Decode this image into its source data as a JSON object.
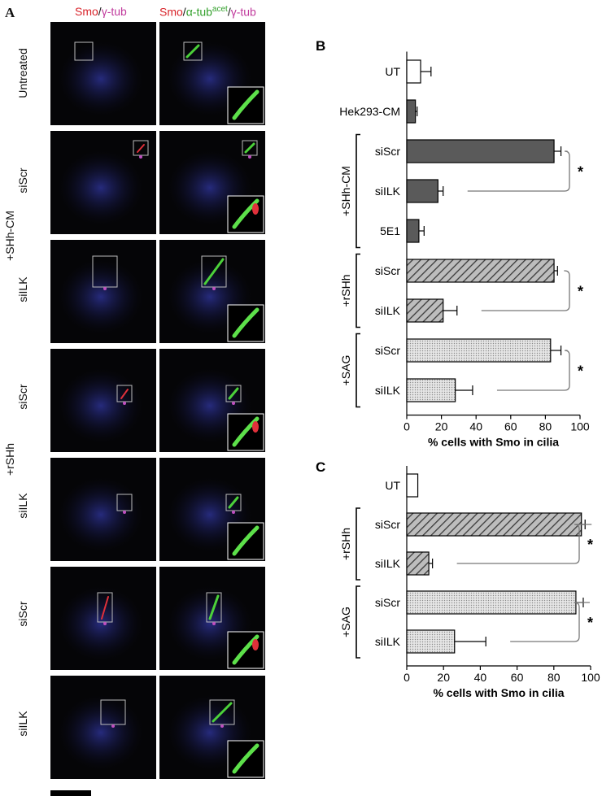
{
  "panel_A": {
    "letter": "A",
    "column1_header": {
      "smo": "Smo",
      "sep": "/",
      "gamma": "γ-tub"
    },
    "column2_header": {
      "smo": "Smo",
      "sep1": "/",
      "alpha": "α-tub",
      "acet": "acet",
      "sep2": "/",
      "gamma": "γ-tub"
    },
    "rows": [
      {
        "label": "Untreated"
      },
      {
        "label": "siScr"
      },
      {
        "label": "siILK"
      },
      {
        "label": "siScr"
      },
      {
        "label": "siILK"
      },
      {
        "label": "siScr"
      },
      {
        "label": "siILK"
      }
    ],
    "group_labels": {
      "shh_cm": "+SHh-CM",
      "rshh": "+rSHh"
    }
  },
  "chart_data": [
    {
      "panel": "B",
      "type": "bar",
      "orientation": "horizontal",
      "categories": [
        "UT",
        "Hek293-CM",
        "siScr",
        "siILK",
        "5E1",
        "siScr",
        "siILK",
        "siScr",
        "siILK"
      ],
      "values": [
        8,
        5,
        85,
        18,
        7,
        85,
        21,
        83,
        28
      ],
      "errors": [
        6,
        1,
        4,
        3,
        3,
        2,
        8,
        6,
        10
      ],
      "fills": [
        "white",
        "dark",
        "dark",
        "dark",
        "dark",
        "hatch",
        "hatch",
        "dots",
        "dots"
      ],
      "groups": [
        {
          "label": "+SHh-CM",
          "from": 2,
          "to": 4
        },
        {
          "label": "+rSHh",
          "from": 5,
          "to": 6
        },
        {
          "label": "+SAG",
          "from": 7,
          "to": 8
        }
      ],
      "significance": [
        {
          "from": 2,
          "to": 3,
          "label": "*"
        },
        {
          "from": 5,
          "to": 6,
          "label": "*"
        },
        {
          "from": 7,
          "to": 8,
          "label": "*"
        }
      ],
      "xlabel": "% cells with Smo in cilia",
      "xlim": [
        0,
        100
      ],
      "xticks": [
        0,
        20,
        40,
        60,
        80,
        100
      ]
    },
    {
      "panel": "C",
      "type": "bar",
      "orientation": "horizontal",
      "categories": [
        "UT",
        "siScr",
        "siILK",
        "siScr",
        "siILK"
      ],
      "values": [
        6,
        95,
        12,
        92,
        26
      ],
      "errors": [
        0,
        2,
        2,
        4,
        17
      ],
      "fills": [
        "white",
        "hatch",
        "hatch",
        "dots",
        "dots"
      ],
      "groups": [
        {
          "label": "+rSHh",
          "from": 1,
          "to": 2
        },
        {
          "label": "+SAG",
          "from": 3,
          "to": 4
        }
      ],
      "significance": [
        {
          "from": 1,
          "to": 2,
          "label": "*"
        },
        {
          "from": 3,
          "to": 4,
          "label": "*"
        }
      ],
      "xlabel": "% cells with Smo in cilia",
      "xlim": [
        0,
        100
      ],
      "xticks": [
        0,
        20,
        40,
        60,
        80,
        100
      ]
    }
  ]
}
